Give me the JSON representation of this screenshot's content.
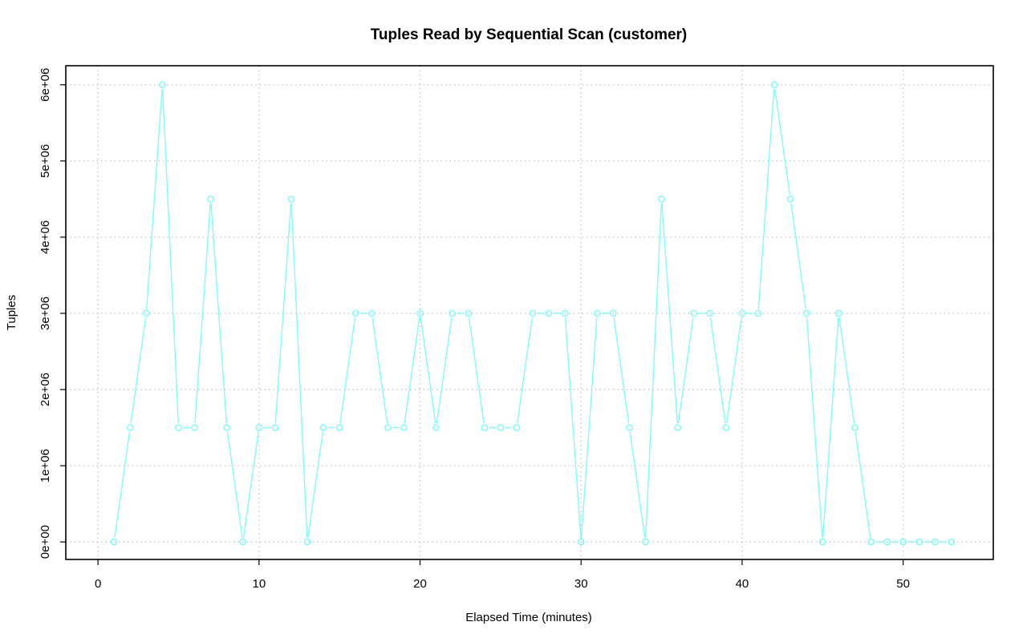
{
  "chart_data": {
    "type": "line",
    "title": "Tuples Read by Sequential Scan (customer)",
    "xlabel": "Elapsed Time (minutes)",
    "ylabel": "Tuples",
    "xlim": [
      -2,
      55.6
    ],
    "ylim": [
      -230000,
      6250000
    ],
    "x_ticks": [
      0,
      10,
      20,
      30,
      40,
      50
    ],
    "x_tick_labels": [
      "0",
      "10",
      "20",
      "30",
      "40",
      "50"
    ],
    "y_ticks": [
      0,
      1000000,
      2000000,
      3000000,
      4000000,
      5000000,
      6000000
    ],
    "y_tick_labels": [
      "0e+00",
      "1e+06",
      "2e+06",
      "3e+06",
      "4e+06",
      "5e+06",
      "6e+06"
    ],
    "grid": true,
    "marker": "open-circle",
    "series": [
      {
        "color": "#7ffcfc",
        "x": [
          1,
          2,
          3,
          4,
          5,
          6,
          7,
          8,
          9,
          10,
          11,
          12,
          13,
          14,
          15,
          16,
          17,
          18,
          19,
          20,
          21,
          22,
          23,
          24,
          25,
          26,
          27,
          28,
          29,
          30,
          31,
          32,
          33,
          34,
          35,
          36,
          37,
          38,
          39,
          40,
          41,
          42,
          43,
          44,
          45,
          46,
          47,
          48,
          49,
          50,
          51,
          52,
          53
        ],
        "values": [
          0,
          1500000,
          3000000,
          6000000,
          1500000,
          1500000,
          4500000,
          1500000,
          0,
          1500000,
          1500000,
          4500000,
          0,
          1500000,
          1500000,
          3000000,
          3000000,
          1500000,
          1500000,
          3000000,
          1500000,
          3000000,
          3000000,
          1500000,
          1500000,
          1500000,
          3000000,
          3000000,
          3000000,
          0,
          3000000,
          3000000,
          1500000,
          0,
          4500000,
          1500000,
          3000000,
          3000000,
          1500000,
          3000000,
          3000000,
          6000000,
          4500000,
          3000000,
          0,
          3000000,
          1500000,
          0,
          0,
          0,
          0,
          0,
          0
        ]
      }
    ]
  }
}
